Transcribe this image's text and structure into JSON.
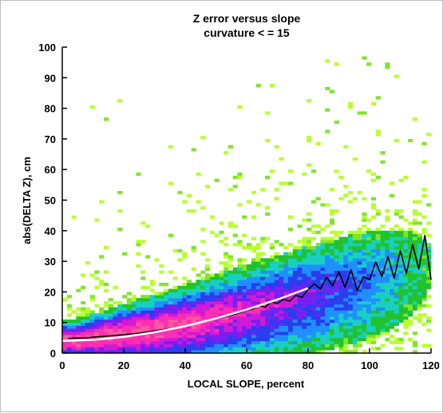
{
  "chart_data": {
    "type": "heatmap",
    "title": "Z error versus slope",
    "subtitle": "curvature < = 15",
    "xlabel": "LOCAL SLOPE, percent",
    "ylabel": "abs(DELTA Z), cm",
    "xlim": [
      0,
      120
    ],
    "ylim": [
      0,
      100
    ],
    "xticks": [
      "0",
      "20",
      "40",
      "60",
      "80",
      "100",
      "120"
    ],
    "yticks": [
      "0",
      "10",
      "20",
      "30",
      "40",
      "50",
      "60",
      "70",
      "80",
      "90",
      "100"
    ],
    "grid": false,
    "legend": "none",
    "colors": {
      "axis": "#000000",
      "mean_line": "#000000",
      "fit_line": "#ffffff",
      "density_scale": [
        "#b7ff2e",
        "#7fe52b",
        "#21c22f",
        "#18cfc4",
        "#1f8fff",
        "#2a3df0",
        "#7a1ff0",
        "#d11ad8",
        "#ff2eb2",
        "#ff5aa0"
      ]
    },
    "density_ridge": {
      "x": [
        2,
        5,
        8,
        10,
        15,
        20,
        25,
        30,
        35,
        40,
        45,
        50,
        55,
        60,
        65,
        70,
        75,
        80,
        85,
        90,
        95,
        100,
        105,
        110,
        115,
        120
      ],
      "y": [
        3.8,
        4.0,
        4.2,
        4.4,
        5.0,
        5.6,
        6.3,
        7.0,
        7.8,
        8.7,
        9.6,
        10.6,
        11.6,
        12.6,
        13.7,
        14.8,
        16.0,
        17.2,
        18.4,
        19.8,
        21.2,
        22.6,
        24.0,
        25.4,
        26.8,
        28.2
      ]
    },
    "series": [
      {
        "style": "black-line",
        "x": [
          2,
          5,
          8,
          10,
          15,
          20,
          25,
          30,
          35,
          40,
          45,
          50,
          55,
          58,
          60,
          62,
          64,
          66,
          68,
          70,
          72,
          74,
          76,
          78,
          80,
          82,
          84,
          86,
          88,
          90,
          92,
          94,
          96,
          98,
          100,
          102,
          104,
          106,
          108,
          110,
          112,
          114,
          116,
          118,
          120
        ],
        "y": [
          4.8,
          4.9,
          5.0,
          5.2,
          5.6,
          6.0,
          6.5,
          7.2,
          8.0,
          8.9,
          10.0,
          11.2,
          12.4,
          13.3,
          14.0,
          14.4,
          15.6,
          15.0,
          16.8,
          16.2,
          17.6,
          17.0,
          18.9,
          18.2,
          20.8,
          22.6,
          21.0,
          24.8,
          22.0,
          26.6,
          21.5,
          27.2,
          20.5,
          25.0,
          24.0,
          29.8,
          25.0,
          31.5,
          24.5,
          33.5,
          26.0,
          35.5,
          27.5,
          38.5,
          24.0
        ]
      },
      {
        "style": "white-fit",
        "x": [
          0,
          10,
          20,
          30,
          40,
          50,
          60,
          70,
          80
        ],
        "y": [
          4.0,
          4.3,
          5.3,
          6.8,
          8.8,
          11.3,
          14.2,
          17.5,
          21.2
        ]
      }
    ]
  }
}
